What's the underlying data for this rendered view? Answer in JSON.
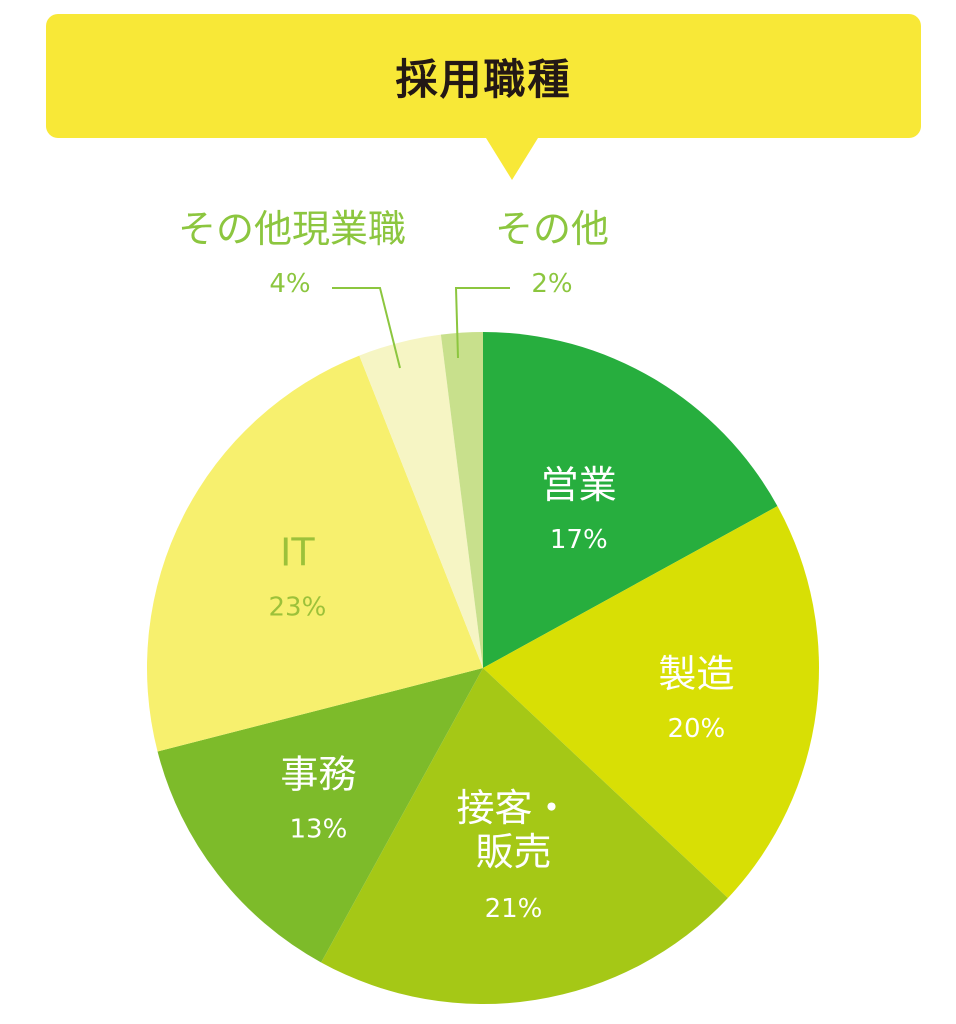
{
  "chart_data": {
    "type": "pie",
    "title": "採用職種",
    "slices": [
      {
        "label": "営業",
        "label_line2": "",
        "value": 17,
        "value_label": "17%",
        "color": "#27ae3e",
        "text_color": "#ffffff"
      },
      {
        "label": "製造",
        "label_line2": "",
        "value": 20,
        "value_label": "20%",
        "color": "#d8df05",
        "text_color": "#ffffff"
      },
      {
        "label": "接客・",
        "label_line2": "販売",
        "value": 21,
        "value_label": "21%",
        "color": "#a5c816",
        "text_color": "#ffffff"
      },
      {
        "label": "事務",
        "label_line2": "",
        "value": 13,
        "value_label": "13%",
        "color": "#7dbb2a",
        "text_color": "#ffffff"
      },
      {
        "label": "IT",
        "label_line2": "",
        "value": 23,
        "value_label": "23%",
        "color": "#f7f06e",
        "text_color": "#9cc13a"
      },
      {
        "label": "その他現業職",
        "label_line2": "",
        "value": 4,
        "value_label": "4%",
        "color": "#f6f5c4",
        "text_color": "#8cc63f"
      },
      {
        "label": "その他",
        "label_line2": "",
        "value": 2,
        "value_label": "2%",
        "color": "#c8e08c",
        "text_color": "#8cc63f"
      }
    ],
    "start": "top",
    "direction": "clockwise",
    "legend": "none",
    "label_placement": "inside, small slices outside with leader lines"
  }
}
